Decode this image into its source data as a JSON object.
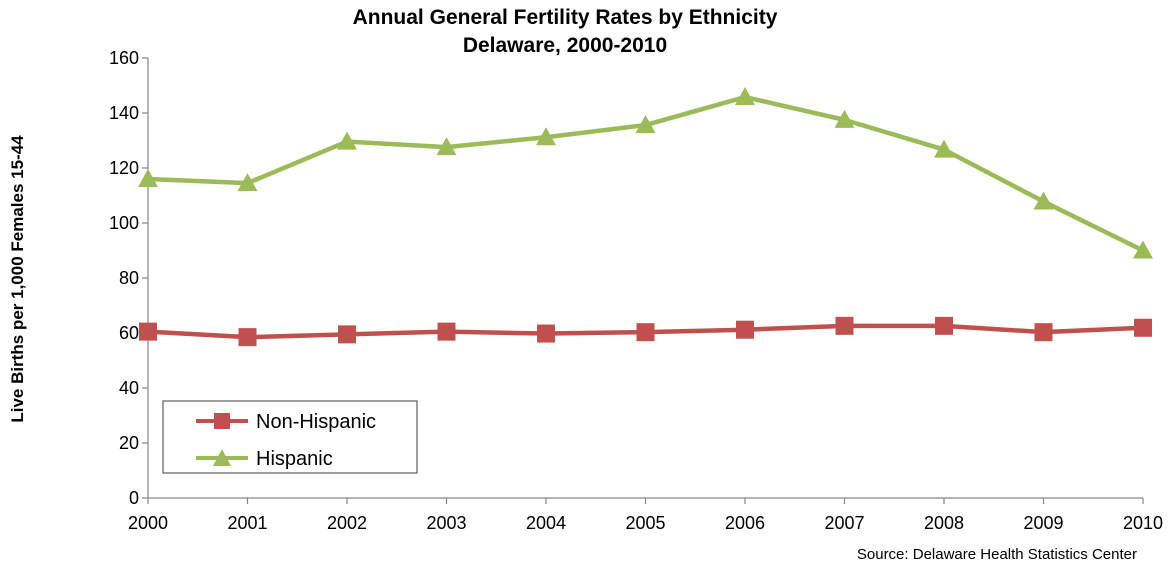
{
  "chart_data": {
    "type": "line",
    "title": "Annual General Fertility Rates by Ethnicity",
    "subtitle": "Delaware, 2000-2010",
    "ylabel": "Live Births per 1,000 Females 15-44",
    "xlabel": "",
    "ylim": [
      0,
      160
    ],
    "yticks": [
      0,
      20,
      40,
      60,
      80,
      100,
      120,
      140,
      160
    ],
    "x": [
      "2000",
      "2001",
      "2002",
      "2003",
      "2004",
      "2005",
      "2006",
      "2007",
      "2008",
      "2009",
      "2010"
    ],
    "grid": false,
    "legend_position": "bottom-left",
    "series": [
      {
        "name": "Non-Hispanic",
        "color": "#c0504d",
        "marker": "square",
        "values": [
          60.5,
          58.5,
          59.5,
          60.5,
          59.8,
          60.3,
          61.2,
          62.6,
          62.6,
          60.3,
          61.9
        ]
      },
      {
        "name": "Hispanic",
        "color": "#9bbb59",
        "marker": "triangle",
        "values": [
          116.0,
          114.5,
          129.6,
          127.6,
          131.2,
          135.6,
          145.8,
          137.5,
          126.7,
          107.8,
          90.0
        ]
      }
    ],
    "source": "Source: Delaware Health Statistics Center"
  }
}
